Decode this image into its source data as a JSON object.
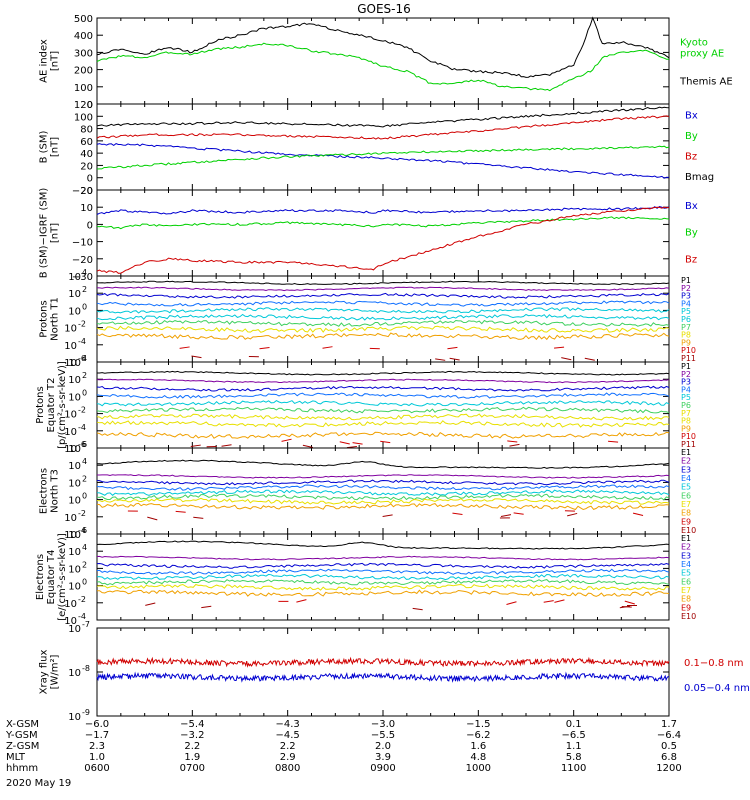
{
  "title": "GOES-16",
  "colors": {
    "black": "#000000",
    "green": "#00d000",
    "blue": "#0000d0",
    "red": "#d00000",
    "purple": "#8000a0",
    "lblue": "#1070ff",
    "cyan": "#00c8d8",
    "lgreen": "#40d060",
    "yellow": "#e8e000",
    "orange": "#f0a000",
    "dkred": "#a00000"
  },
  "chart_data": [
    {
      "type": "line",
      "ylabel": [
        "AE index",
        "[nT]"
      ],
      "ylim": [
        0,
        500
      ],
      "yticks": [
        "0",
        "100",
        "200",
        "300",
        "400",
        "500"
      ],
      "x_hours": [
        6.0,
        6.25,
        6.5,
        6.75,
        7.0,
        7.25,
        7.5,
        7.75,
        8.0,
        8.25,
        8.5,
        8.75,
        9.0,
        9.25,
        9.5,
        9.75,
        10.0,
        10.25,
        10.5,
        10.75,
        11.0,
        11.1,
        11.2,
        11.3,
        11.5,
        11.75,
        12.0
      ],
      "series": [
        {
          "name": "Kyoto proxy AE",
          "legend": [
            "Kyoto",
            "proxy AE"
          ],
          "color": "green",
          "values": [
            250,
            280,
            270,
            300,
            290,
            320,
            330,
            350,
            340,
            310,
            290,
            270,
            220,
            190,
            120,
            120,
            140,
            100,
            90,
            80,
            150,
            170,
            200,
            270,
            300,
            310,
            260
          ]
        },
        {
          "name": "Themis AE",
          "legend": [
            "Themis AE"
          ],
          "color": "black",
          "values": [
            290,
            320,
            290,
            330,
            300,
            370,
            400,
            440,
            450,
            470,
            430,
            400,
            370,
            330,
            250,
            200,
            190,
            180,
            160,
            170,
            230,
            350,
            500,
            350,
            360,
            330,
            270
          ]
        }
      ]
    },
    {
      "type": "line",
      "ylabel": [
        "B (SM)",
        "[nT]"
      ],
      "ylim": [
        -20,
        120
      ],
      "yticks": [
        "−20",
        "0",
        "20",
        "40",
        "60",
        "80",
        "100",
        "120"
      ],
      "x_hours": [
        6.0,
        6.5,
        7.0,
        7.5,
        8.0,
        8.5,
        9.0,
        9.5,
        10.0,
        10.5,
        11.0,
        11.5,
        12.0
      ],
      "series": [
        {
          "name": "Bx",
          "legend": [
            "Bx"
          ],
          "color": "blue",
          "values": [
            55,
            53,
            48,
            43,
            38,
            35,
            32,
            28,
            22,
            16,
            10,
            5,
            0
          ]
        },
        {
          "name": "By",
          "legend": [
            "By"
          ],
          "color": "green",
          "values": [
            15,
            20,
            25,
            30,
            34,
            37,
            40,
            42,
            44,
            46,
            47,
            49,
            50
          ]
        },
        {
          "name": "Bz",
          "legend": [
            "Bz"
          ],
          "color": "red",
          "values": [
            65,
            70,
            70,
            70,
            68,
            66,
            64,
            70,
            76,
            83,
            90,
            96,
            100
          ]
        },
        {
          "name": "Bmag",
          "legend": [
            "Bmag"
          ],
          "color": "black",
          "values": [
            85,
            88,
            88,
            90,
            88,
            86,
            84,
            90,
            95,
            100,
            105,
            110,
            115
          ]
        }
      ]
    },
    {
      "type": "line",
      "ylabel": [
        "B (SM)−IGRF (SM)",
        "[nT]"
      ],
      "ylim": [
        -30,
        20
      ],
      "yticks": [
        "−30",
        "−20",
        "−10",
        "0",
        "10",
        "20"
      ],
      "x_hours": [
        6.0,
        6.25,
        6.5,
        6.75,
        7.0,
        7.5,
        8.0,
        8.5,
        8.9,
        9.0,
        9.5,
        10.0,
        10.5,
        11.0,
        11.5,
        12.0
      ],
      "series": [
        {
          "name": "Bx",
          "legend": [
            "Bx"
          ],
          "color": "blue",
          "values": [
            6,
            8,
            7,
            6,
            8,
            7,
            8,
            8,
            7,
            8,
            7,
            8,
            8,
            9,
            9,
            10
          ]
        },
        {
          "name": "By",
          "legend": [
            "By"
          ],
          "color": "green",
          "values": [
            -1,
            -2,
            0,
            -1,
            0,
            0,
            1,
            0,
            -1,
            0,
            -1,
            1,
            2,
            3,
            4,
            3
          ]
        },
        {
          "name": "Bz",
          "legend": [
            "Bz"
          ],
          "color": "red",
          "values": [
            -27,
            -28,
            -22,
            -20,
            -21,
            -22,
            -22,
            -24,
            -26,
            -23,
            -15,
            -7,
            0,
            5,
            8,
            10
          ]
        }
      ]
    },
    {
      "type": "line",
      "log": true,
      "ylabel": [
        "Protons",
        "North T1"
      ],
      "yexp": [
        -6,
        4
      ],
      "ytick_exps": [
        -6,
        -4,
        -2,
        0,
        2,
        4
      ],
      "labels": [
        "P1",
        "P2",
        "P3",
        "P4",
        "P5",
        "P6",
        "P7",
        "P8",
        "P9",
        "P10",
        "P11"
      ],
      "levels": [
        3.2,
        2.5,
        1.7,
        0.8,
        0.0,
        -0.8,
        -1.5,
        -2.2,
        -3.0,
        -4.4,
        -5.5
      ],
      "colors": [
        "black",
        "purple",
        "blue",
        "lblue",
        "cyan",
        "cyan",
        "lgreen",
        "yellow",
        "orange",
        "red",
        "dkred"
      ]
    },
    {
      "type": "line",
      "log": true,
      "ylabel": [
        "Protons",
        "Equator T2",
        "[p/(cm²-s-sr-keV)]"
      ],
      "yexp": [
        -6,
        4
      ],
      "ytick_exps": [
        -6,
        -4,
        -2,
        0,
        2,
        4
      ],
      "labels": [
        "P1",
        "P2",
        "P3",
        "P4",
        "P5",
        "P6",
        "P7",
        "P8",
        "P9",
        "P10",
        "P11"
      ],
      "levels": [
        2.7,
        1.8,
        0.9,
        0.1,
        -0.8,
        -1.6,
        -2.4,
        -3.2,
        -4.5,
        -5.2,
        -5.8
      ],
      "colors": [
        "black",
        "purple",
        "blue",
        "lblue",
        "cyan",
        "lgreen",
        "yellow",
        "yellow",
        "orange",
        "red",
        "dkred"
      ]
    },
    {
      "type": "line",
      "log": true,
      "ylabel": [
        "Electrons",
        "North T3"
      ],
      "yexp": [
        -4,
        6
      ],
      "ytick_exps": [
        -4,
        -2,
        0,
        2,
        4,
        6
      ],
      "labels": [
        "E1",
        "E2",
        "E3",
        "E4",
        "E5",
        "E6",
        "E7",
        "E8",
        "E9",
        "E10"
      ],
      "levels": [
        4.0,
        2.7,
        2.0,
        1.4,
        0.8,
        0.3,
        -0.2,
        -0.8,
        -1.4,
        -2.0
      ],
      "colors": [
        "black",
        "purple",
        "blue",
        "lblue",
        "cyan",
        "lgreen",
        "yellow",
        "orange",
        "red",
        "dkred"
      ]
    },
    {
      "type": "line",
      "log": true,
      "ylabel": [
        "Electrons",
        "Equator T4",
        "[e/(cm²-s-sr-keV)]"
      ],
      "yexp": [
        -4,
        6
      ],
      "ytick_exps": [
        -4,
        -2,
        0,
        2,
        4,
        6
      ],
      "labels": [
        "E1",
        "E2",
        "E3",
        "E4",
        "E5",
        "E6",
        "E7",
        "E8",
        "E9",
        "E10"
      ],
      "levels": [
        4.6,
        3.2,
        2.3,
        1.6,
        1.0,
        0.4,
        -0.2,
        -0.9,
        -2.0,
        -2.5
      ],
      "colors": [
        "black",
        "purple",
        "blue",
        "lblue",
        "cyan",
        "lgreen",
        "yellow",
        "orange",
        "red",
        "dkred"
      ]
    },
    {
      "type": "line",
      "log": true,
      "ylabel": [
        "Xray flux",
        "[W/m²]"
      ],
      "yexp": [
        -9,
        -7
      ],
      "ytick_exps": [
        -9,
        -8,
        -7
      ],
      "series": [
        {
          "name": "0.1-0.8 nm",
          "legend": [
            "0.1−0.8 nm"
          ],
          "color": "red",
          "level": -7.78
        },
        {
          "name": "0.05-0.4 nm",
          "legend": [
            "0.05−0.4 nm"
          ],
          "color": "blue",
          "level": -8.12
        }
      ]
    }
  ],
  "xaxis": {
    "xlim_hours": [
      6.0,
      12.0
    ],
    "rows": [
      {
        "label": "X-GSM",
        "values": [
          "−6.0",
          "−5.4",
          "−4.3",
          "−3.0",
          "−1.5",
          "0.1",
          "1.7"
        ]
      },
      {
        "label": "Y-GSM",
        "values": [
          "−1.7",
          "−3.2",
          "−4.5",
          "−5.5",
          "−6.2",
          "−6.5",
          "−6.4"
        ]
      },
      {
        "label": "Z-GSM",
        "values": [
          "2.3",
          "2.2",
          "2.2",
          "2.0",
          "1.6",
          "1.1",
          "0.5"
        ]
      },
      {
        "label": "MLT",
        "values": [
          "1.0",
          "1.9",
          "2.9",
          "3.9",
          "4.8",
          "5.8",
          "6.8"
        ]
      },
      {
        "label": "hhmm",
        "values": [
          "0600",
          "0700",
          "0800",
          "0900",
          "1000",
          "1100",
          "1200"
        ]
      }
    ],
    "date": "2020 May 19"
  }
}
